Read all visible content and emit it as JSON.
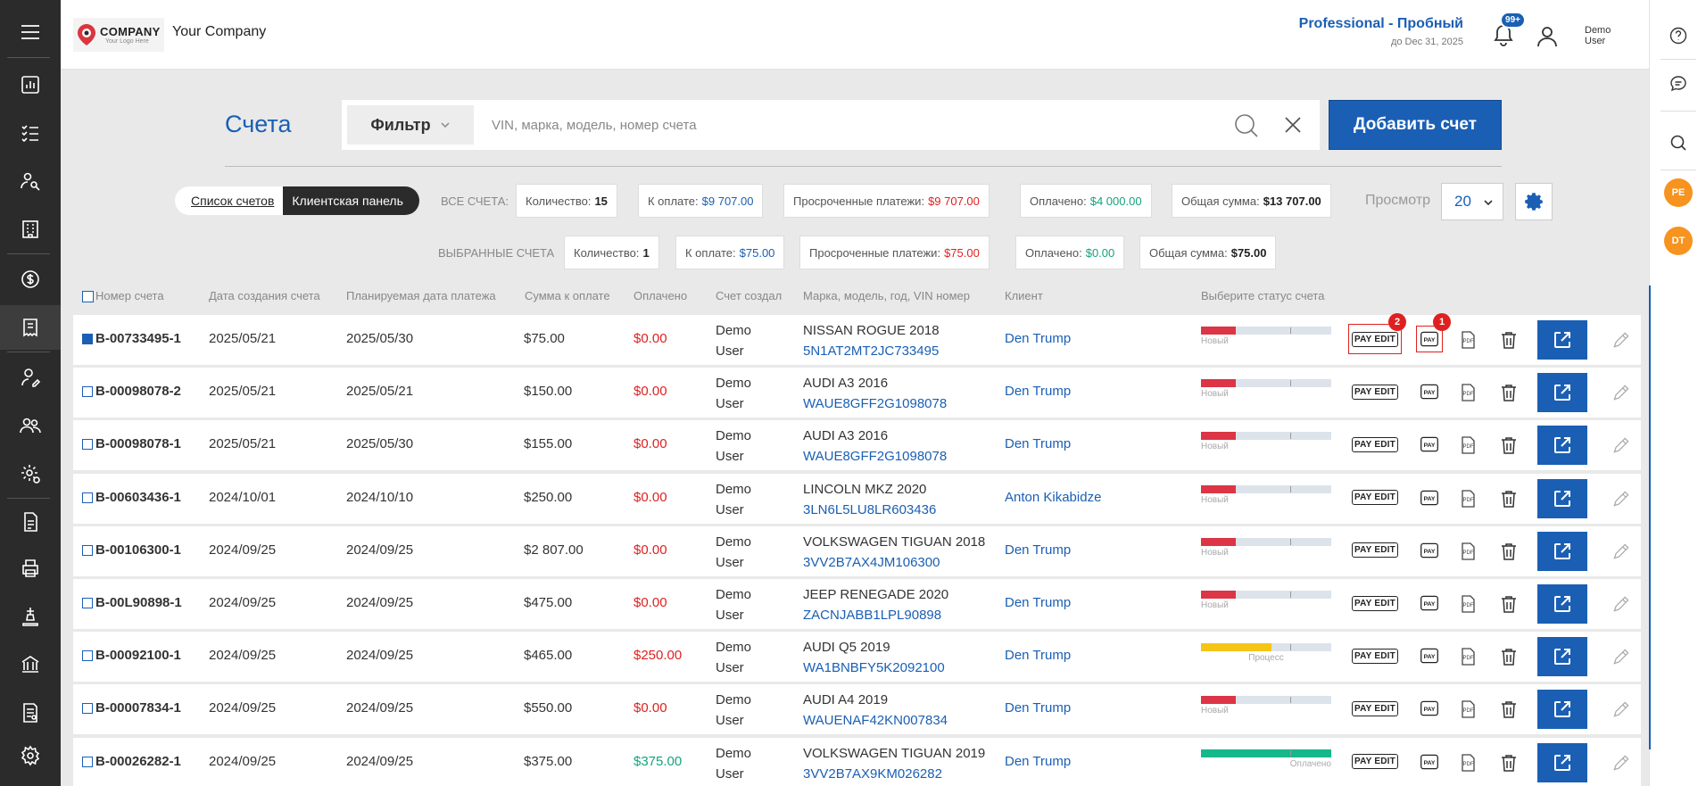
{
  "header": {
    "logo_text": "COMPANY",
    "logo_tagline": "Your Logo Here",
    "company_name": "Your Company",
    "plan_name": "Professional - Пробный",
    "plan_until": "до Dec 31, 2025",
    "notifications_badge": "99+",
    "user_name": "Demo User"
  },
  "right_sidebar": {
    "avatars": [
      "PE",
      "DT"
    ]
  },
  "left_sidebar": {
    "icons": [
      "menu-icon",
      "dashboard-icon",
      "list-icon",
      "users-search-icon",
      "building-icon",
      "money-icon",
      "invoice-icon",
      "user-edit-icon",
      "users-icon",
      "settings-cog-icon",
      "document-icon",
      "printer-icon",
      "auction-icon",
      "bank-icon",
      "report-icon",
      "settings-icon"
    ]
  },
  "toolbar": {
    "title": "Счета",
    "filter_label": "Фильтр",
    "search_placeholder": "VIN, марка, модель, номер счета",
    "add_button": "Добавить счет"
  },
  "view_toggle": {
    "list_label": "Список счетов",
    "panel_label": "Клиентская панель"
  },
  "stats_all": {
    "label": "ВСЕ СЧЕТА:",
    "count_label": "Количество:",
    "count": "15",
    "due_label": "К оплате:",
    "due": "$9 707.00",
    "overdue_label": "Просроченные платежи:",
    "overdue": "$9 707.00",
    "paid_label": "Оплачено:",
    "paid": "$4 000.00",
    "total_label": "Общая сумма:",
    "total": "$13 707.00"
  },
  "stats_selected": {
    "label": "ВЫБРАННЫЕ СЧЕТА",
    "count_label": "Количество:",
    "count": "1",
    "due_label": "К оплате:",
    "due": "$75.00",
    "overdue_label": "Просроченные платежи:",
    "overdue": "$75.00",
    "paid_label": "Оплачено:",
    "paid": "$0.00",
    "total_label": "Общая сумма:",
    "total": "$75.00"
  },
  "view": {
    "label": "Просмотр",
    "per_page": "20"
  },
  "table": {
    "columns": {
      "invoice": "Номер счета",
      "created": "Дата создания счета",
      "planned": "Планируемая дата платежа",
      "amount": "Сумма к оплате",
      "paid": "Оплачено",
      "creator": "Счет создал",
      "car": "Марка, модель, год, VIN номер",
      "client": "Клиент",
      "status": "Выберите статус счета"
    },
    "action_labels": {
      "pay_edit": "PAY EDIT",
      "pay": "PAY",
      "pdf": "PDF"
    },
    "step_badges": [
      "2",
      "1"
    ],
    "rows": [
      {
        "selected": true,
        "invoice": "B-00733495-1",
        "created": "2025/05/21",
        "planned": "2025/05/30",
        "amount": "$75.00",
        "paid": "$0.00",
        "paid_color": "red",
        "creator_first": "Demo",
        "creator_last": "User",
        "car": "NISSAN ROGUE 2018",
        "vin": "5N1AT2MT2JC733495",
        "client": "Den Trump",
        "status": "Новый",
        "status_progress": 0.27,
        "status_color": "#dc3545"
      },
      {
        "selected": false,
        "invoice": "B-00098078-2",
        "created": "2025/05/21",
        "planned": "2025/05/21",
        "amount": "$150.00",
        "paid": "$0.00",
        "paid_color": "red",
        "creator_first": "Demo",
        "creator_last": "User",
        "car": "AUDI A3 2016",
        "vin": "WAUE8GFF2G1098078",
        "client": "Den Trump",
        "status": "Новый",
        "status_progress": 0.27,
        "status_color": "#dc3545"
      },
      {
        "selected": false,
        "invoice": "B-00098078-1",
        "created": "2025/05/21",
        "planned": "2025/05/30",
        "amount": "$155.00",
        "paid": "$0.00",
        "paid_color": "red",
        "creator_first": "Demo",
        "creator_last": "User",
        "car": "AUDI A3 2016",
        "vin": "WAUE8GFF2G1098078",
        "client": "Den Trump",
        "status": "Новый",
        "status_progress": 0.27,
        "status_color": "#dc3545"
      },
      {
        "selected": false,
        "invoice": "B-00603436-1",
        "created": "2024/10/01",
        "planned": "2024/10/10",
        "amount": "$250.00",
        "paid": "$0.00",
        "paid_color": "red",
        "creator_first": "Demo",
        "creator_last": "User",
        "car": "LINCOLN MKZ 2020",
        "vin": "3LN6L5LU8LR603436",
        "client": "Anton Kikabidze",
        "status": "Новый",
        "status_progress": 0.27,
        "status_color": "#dc3545"
      },
      {
        "selected": false,
        "invoice": "B-00106300-1",
        "created": "2024/09/25",
        "planned": "2024/09/25",
        "amount": "$2 807.00",
        "paid": "$0.00",
        "paid_color": "red",
        "creator_first": "Demo",
        "creator_last": "User",
        "car": "VOLKSWAGEN TIGUAN 2018",
        "vin": "3VV2B7AX4JM106300",
        "client": "Den Trump",
        "status": "Новый",
        "status_progress": 0.27,
        "status_color": "#dc3545"
      },
      {
        "selected": false,
        "invoice": "B-00L90898-1",
        "created": "2024/09/25",
        "planned": "2024/09/25",
        "amount": "$475.00",
        "paid": "$0.00",
        "paid_color": "red",
        "creator_first": "Demo",
        "creator_last": "User",
        "car": "JEEP RENEGADE 2020",
        "vin": "ZACNJABB1LPL90898",
        "client": "Den Trump",
        "status": "Новый",
        "status_progress": 0.27,
        "status_color": "#dc3545"
      },
      {
        "selected": false,
        "invoice": "B-00092100-1",
        "created": "2024/09/25",
        "planned": "2024/09/25",
        "amount": "$465.00",
        "paid": "$250.00",
        "paid_color": "red",
        "creator_first": "Demo",
        "creator_last": "User",
        "car": "AUDI Q5 2019",
        "vin": "WA1BNBFY5K2092100",
        "client": "Den Trump",
        "status": "Процесс",
        "status_progress": 0.54,
        "status_color": "#f5c518"
      },
      {
        "selected": false,
        "invoice": "B-00007834-1",
        "created": "2024/09/25",
        "planned": "2024/09/25",
        "amount": "$550.00",
        "paid": "$0.00",
        "paid_color": "red",
        "creator_first": "Demo",
        "creator_last": "User",
        "car": "AUDI A4 2019",
        "vin": "WAUENAF42KN007834",
        "client": "Den Trump",
        "status": "Новый",
        "status_progress": 0.27,
        "status_color": "#dc3545"
      },
      {
        "selected": false,
        "invoice": "B-00026282-1",
        "created": "2024/09/25",
        "planned": "2024/09/25",
        "amount": "$375.00",
        "paid": "$375.00",
        "paid_color": "green",
        "creator_first": "Demo",
        "creator_last": "User",
        "car": "VOLKSWAGEN TIGUAN 2019",
        "vin": "3VV2B7AX9KM026282",
        "client": "Den Trump",
        "status": "Оплачено",
        "status_progress": 1.0,
        "status_color": "#14b88a"
      }
    ]
  }
}
